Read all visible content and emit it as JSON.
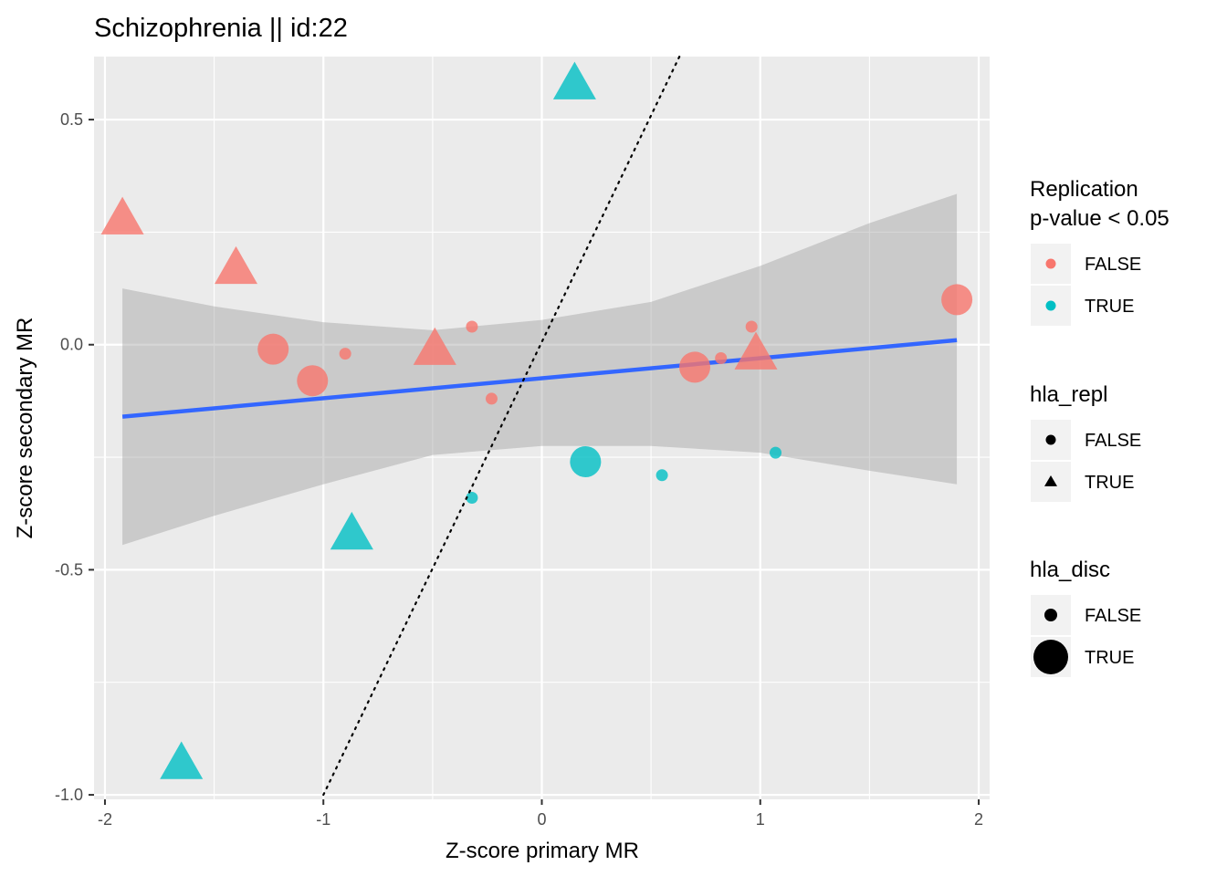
{
  "chart_data": {
    "type": "scatter",
    "title": "Schizophrenia || id:22",
    "xlabel": "Z-score primary MR",
    "ylabel": "Z-score secondary MR",
    "xlim": [
      -2.05,
      2.05
    ],
    "ylim": [
      -1.01,
      0.64
    ],
    "x_ticks": [
      -2,
      -1,
      0,
      1,
      2
    ],
    "x_tick_labels": [
      "-2",
      "-1",
      "0",
      "1",
      "2"
    ],
    "y_ticks": [
      -1.0,
      -0.5,
      0.0,
      0.5
    ],
    "y_tick_labels": [
      "-1.0",
      "-0.5",
      "0.0",
      "0.5"
    ],
    "grid": true,
    "colors": {
      "FALSE": "#F8766D",
      "TRUE": "#00BFC4",
      "fit_line": "#3366FF",
      "panel": "#EBEBEB",
      "grid": "#FFFFFF",
      "ribbon": "#999999"
    },
    "points": [
      {
        "x": 0.15,
        "y": 0.58,
        "replication": "TRUE",
        "hla_repl": "TRUE",
        "hla_disc": "TRUE"
      },
      {
        "x": -1.92,
        "y": 0.28,
        "replication": "FALSE",
        "hla_repl": "TRUE",
        "hla_disc": "TRUE"
      },
      {
        "x": -1.4,
        "y": 0.17,
        "replication": "FALSE",
        "hla_repl": "TRUE",
        "hla_disc": "TRUE"
      },
      {
        "x": 1.9,
        "y": 0.1,
        "replication": "FALSE",
        "hla_repl": "FALSE",
        "hla_disc": "TRUE"
      },
      {
        "x": -0.32,
        "y": 0.04,
        "replication": "FALSE",
        "hla_repl": "FALSE",
        "hla_disc": "FALSE"
      },
      {
        "x": 0.96,
        "y": 0.04,
        "replication": "FALSE",
        "hla_repl": "FALSE",
        "hla_disc": "FALSE"
      },
      {
        "x": -0.49,
        "y": -0.01,
        "replication": "FALSE",
        "hla_repl": "TRUE",
        "hla_disc": "TRUE"
      },
      {
        "x": 0.98,
        "y": -0.02,
        "replication": "FALSE",
        "hla_repl": "TRUE",
        "hla_disc": "TRUE"
      },
      {
        "x": -1.23,
        "y": -0.01,
        "replication": "FALSE",
        "hla_repl": "FALSE",
        "hla_disc": "TRUE"
      },
      {
        "x": -0.9,
        "y": -0.02,
        "replication": "FALSE",
        "hla_repl": "FALSE",
        "hla_disc": "FALSE"
      },
      {
        "x": 0.82,
        "y": -0.03,
        "replication": "FALSE",
        "hla_repl": "FALSE",
        "hla_disc": "FALSE"
      },
      {
        "x": 0.7,
        "y": -0.05,
        "replication": "FALSE",
        "hla_repl": "FALSE",
        "hla_disc": "TRUE"
      },
      {
        "x": -1.05,
        "y": -0.08,
        "replication": "FALSE",
        "hla_repl": "FALSE",
        "hla_disc": "TRUE"
      },
      {
        "x": -0.23,
        "y": -0.12,
        "replication": "FALSE",
        "hla_repl": "FALSE",
        "hla_disc": "FALSE"
      },
      {
        "x": 1.07,
        "y": -0.24,
        "replication": "TRUE",
        "hla_repl": "FALSE",
        "hla_disc": "FALSE"
      },
      {
        "x": 0.2,
        "y": -0.26,
        "replication": "TRUE",
        "hla_repl": "FALSE",
        "hla_disc": "TRUE"
      },
      {
        "x": 0.55,
        "y": -0.29,
        "replication": "TRUE",
        "hla_repl": "FALSE",
        "hla_disc": "FALSE"
      },
      {
        "x": -0.32,
        "y": -0.34,
        "replication": "TRUE",
        "hla_repl": "FALSE",
        "hla_disc": "FALSE"
      },
      {
        "x": -0.87,
        "y": -0.42,
        "replication": "TRUE",
        "hla_repl": "TRUE",
        "hla_disc": "TRUE"
      },
      {
        "x": -1.65,
        "y": -0.93,
        "replication": "TRUE",
        "hla_repl": "TRUE",
        "hla_disc": "TRUE"
      }
    ],
    "fit_line": {
      "x": [
        -1.92,
        1.9
      ],
      "y": [
        -0.16,
        0.01
      ]
    },
    "confidence_band": {
      "x": [
        -1.92,
        -1.5,
        -1.0,
        -0.5,
        0.0,
        0.5,
        1.0,
        1.5,
        1.9
      ],
      "upper": [
        0.125,
        0.085,
        0.05,
        0.032,
        0.055,
        0.095,
        0.175,
        0.27,
        0.335
      ],
      "lower": [
        -0.445,
        -0.38,
        -0.31,
        -0.245,
        -0.225,
        -0.225,
        -0.24,
        -0.28,
        -0.31
      ]
    },
    "reference_line": {
      "x": [
        -1.0,
        0.63
      ],
      "y": [
        -1.0,
        0.64
      ],
      "style": "dotted"
    },
    "legends": [
      {
        "title": [
          "Replication",
          "p-value < 0.05"
        ],
        "entries": [
          {
            "label": "FALSE",
            "color": "#F8766D",
            "shape": "circle",
            "size": "small"
          },
          {
            "label": "TRUE",
            "color": "#00BFC4",
            "shape": "circle",
            "size": "small"
          }
        ]
      },
      {
        "title": [
          "hla_repl"
        ],
        "entries": [
          {
            "label": "FALSE",
            "color": "#000000",
            "shape": "circle",
            "size": "small"
          },
          {
            "label": "TRUE",
            "color": "#000000",
            "shape": "triangle",
            "size": "small"
          }
        ]
      },
      {
        "title": [
          "hla_disc"
        ],
        "entries": [
          {
            "label": "FALSE",
            "color": "#000000",
            "shape": "circle",
            "size": "medium"
          },
          {
            "label": "TRUE",
            "color": "#000000",
            "shape": "circle",
            "size": "large"
          }
        ]
      }
    ],
    "legend_placement": "right"
  }
}
